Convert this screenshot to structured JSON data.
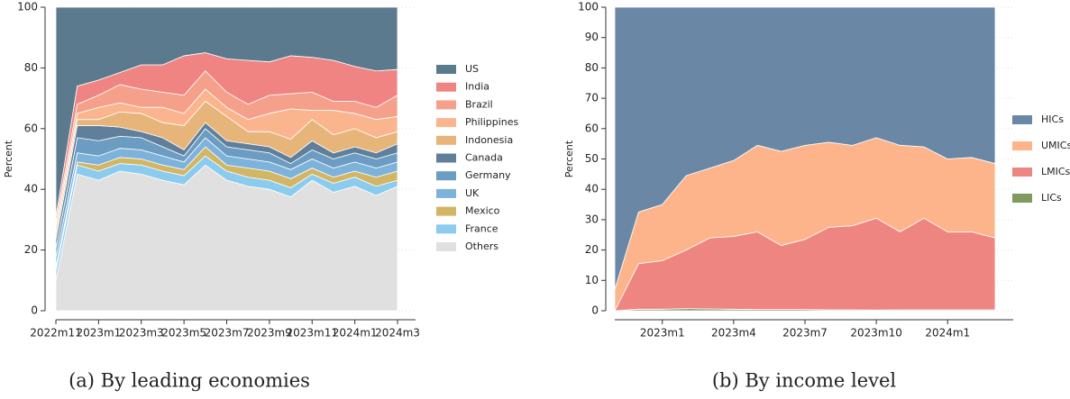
{
  "chart_data": [
    {
      "type": "stacked_area",
      "caption": "(a) By leading economies",
      "ylabel": "Percent",
      "categories": [
        "2022m11",
        null,
        "2023m1",
        null,
        "2023m3",
        null,
        "2023m5",
        null,
        "2023m7",
        null,
        "2023m9",
        null,
        "2023m11",
        null,
        "2024m1",
        null,
        "2024m3"
      ],
      "ylim": [
        0,
        100
      ],
      "yticks": [
        0,
        20,
        40,
        60,
        80,
        100
      ],
      "grid": true,
      "series": [
        {
          "name": "Others",
          "color": "#e0e0e0",
          "values": [
            10,
            45,
            43,
            46,
            45,
            43,
            41.5,
            48,
            43,
            41,
            40,
            37.5,
            43,
            39,
            41,
            38,
            41
          ]
        },
        {
          "name": "France",
          "color": "#8acbee",
          "values": [
            3,
            3,
            3,
            2.5,
            3,
            3,
            3,
            3,
            3,
            3,
            3,
            3,
            2,
            3,
            3,
            3,
            2
          ]
        },
        {
          "name": "Mexico",
          "color": "#d2b565",
          "values": [
            1.5,
            1,
            2,
            2,
            2,
            2,
            2,
            3,
            2,
            3,
            3,
            3,
            2,
            2,
            2,
            3,
            3
          ]
        },
        {
          "name": "UK",
          "color": "#7db3da",
          "values": [
            3,
            3,
            3,
            3,
            3,
            3,
            2.5,
            3,
            3,
            3,
            3,
            3,
            3,
            3,
            3,
            3,
            3
          ]
        },
        {
          "name": "Germany",
          "color": "#6c9cc2",
          "values": [
            3,
            5,
            5,
            4,
            4,
            3,
            2,
            3,
            3,
            3,
            3,
            2,
            3,
            3,
            3,
            3,
            3
          ]
        },
        {
          "name": "Canada",
          "color": "#5f7f9a",
          "values": [
            3,
            4,
            5,
            3,
            2,
            3,
            2,
            2,
            2,
            2,
            2,
            2,
            3,
            2,
            2,
            2,
            3
          ]
        },
        {
          "name": "Indonesia",
          "color": "#e7b47a",
          "values": [
            2,
            2,
            2,
            5,
            6,
            5,
            8,
            7,
            8,
            4,
            5,
            6,
            7,
            6,
            6,
            5,
            4
          ]
        },
        {
          "name": "Philippines",
          "color": "#fbb58e",
          "values": [
            2,
            2,
            4,
            3,
            2,
            5,
            4,
            4,
            3,
            4,
            6,
            10,
            3,
            8,
            5,
            6,
            5
          ]
        },
        {
          "name": "Brazil",
          "color": "#f4a08a",
          "values": [
            1.5,
            3,
            4,
            6,
            6,
            5,
            6,
            6,
            5,
            5,
            6,
            5,
            6,
            3,
            4,
            4,
            7
          ]
        },
        {
          "name": "India",
          "color": "#f08482",
          "values": [
            2,
            6,
            5,
            4,
            8,
            9,
            13,
            6,
            11,
            14.5,
            11,
            12.5,
            11.5,
            13.5,
            11.5,
            12,
            8.5
          ]
        },
        {
          "name": "US",
          "color": "#5b7a8d",
          "values": [
            69,
            26,
            24,
            21.5,
            19,
            19,
            16,
            15,
            17,
            17.5,
            18,
            16,
            16.5,
            17.5,
            19.5,
            21,
            20.5
          ]
        }
      ]
    },
    {
      "type": "stacked_area",
      "caption": "(b) By income level",
      "ylabel": "Percent",
      "categories": [
        null,
        null,
        "2023m1",
        null,
        null,
        "2023m4",
        null,
        null,
        "2023m7",
        null,
        null,
        "2023m10",
        null,
        null,
        "2024m1",
        null,
        null
      ],
      "ylim": [
        0,
        100
      ],
      "yticks": [
        0,
        10,
        20,
        30,
        40,
        50,
        60,
        70,
        80,
        90,
        100
      ],
      "grid": true,
      "series": [
        {
          "name": "LICs",
          "color": "#7f9a5f",
          "values": [
            0,
            0.5,
            0.5,
            0.7,
            0.6,
            0.5,
            0.4,
            0.4,
            0.4,
            0.3,
            0.3,
            0.2,
            0.3,
            0.3,
            0.3,
            0.3,
            0.3
          ]
        },
        {
          "name": "LMICs",
          "color": "#ef8580",
          "values": [
            0,
            15,
            16,
            19.3,
            23.4,
            24,
            25.6,
            21.1,
            23.1,
            27.2,
            27.7,
            30.3,
            25.7,
            30.2,
            25.7,
            25.7,
            23.7
          ]
        },
        {
          "name": "UMICs",
          "color": "#fdb48b",
          "values": [
            7,
            17,
            18.5,
            24.5,
            23,
            25,
            28.5,
            31,
            31,
            28,
            26.5,
            26.5,
            28.5,
            23.5,
            24,
            24.5,
            24.5
          ]
        },
        {
          "name": "HICs",
          "color": "#6b87a6",
          "values": [
            93,
            67.5,
            65,
            55.5,
            53,
            50.5,
            45.5,
            47.5,
            45.5,
            44.5,
            45.5,
            43,
            45.5,
            46,
            50,
            49.5,
            51.5
          ]
        }
      ]
    }
  ]
}
